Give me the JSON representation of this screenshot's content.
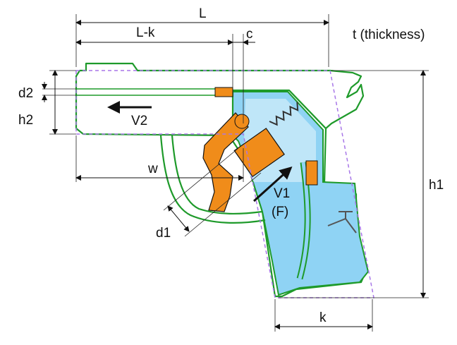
{
  "labels": {
    "L": "L",
    "L_minus_k": "L-k",
    "c": "c",
    "thickness": "t (thickness)",
    "d2": "d2",
    "h2": "h2",
    "V2": "V2",
    "w": "w",
    "d1": "d1",
    "V1": "V1",
    "F": "(F)",
    "h1": "h1",
    "k": "k"
  },
  "colors": {
    "outline": "#1e9a2a",
    "water": "#8fd3f4",
    "orange": "#f08c1a",
    "dashed": "#a877e8"
  }
}
